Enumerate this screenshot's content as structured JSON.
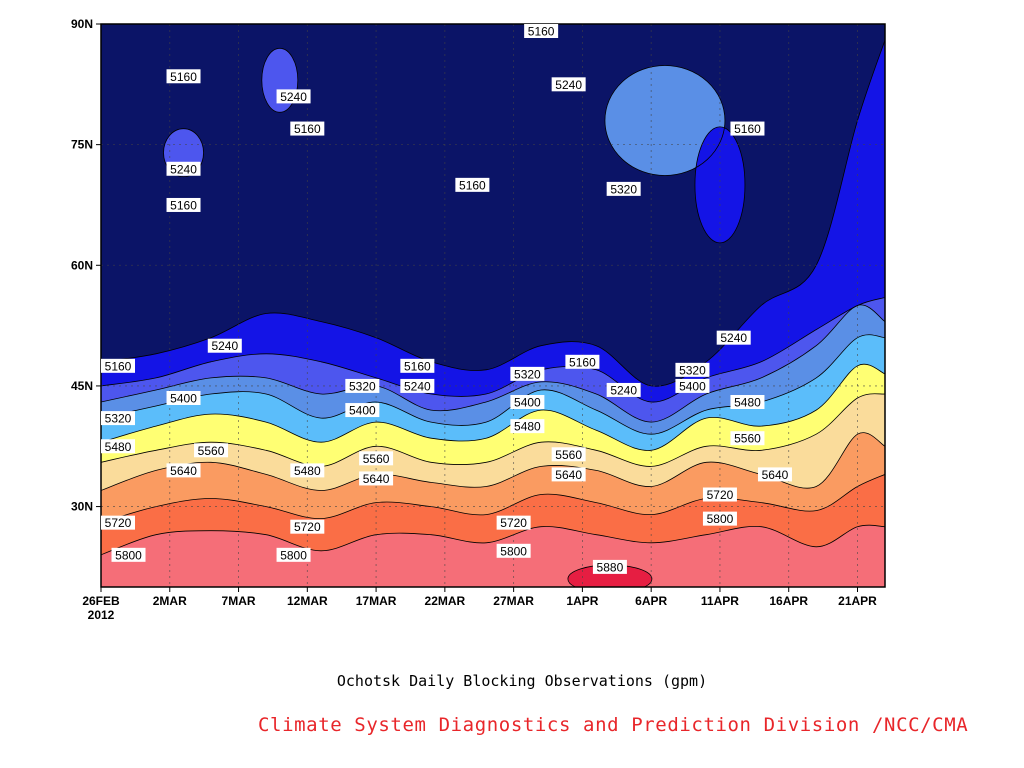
{
  "title": "Ochotsk Daily Blocking Observations (gpm)",
  "credit": "Climate System Diagnostics and Prediction Division /NCC/CMA",
  "colors": {
    "background": "#ffffff",
    "credit_text": "#e8262a",
    "levels": [
      "#0b1467",
      "#1414e6",
      "#4d56ee",
      "#5a8fe6",
      "#5bbdfa",
      "#ffff73",
      "#fadc9b",
      "#fa9b61",
      "#fa6e46",
      "#f56e78",
      "#e61e42"
    ]
  },
  "chart_data": {
    "type": "contour",
    "title": "Ochotsk Daily Blocking Observations (gpm)",
    "xlabel": "",
    "ylabel": "",
    "xlim": [
      "2012-02-26",
      "2012-04-23"
    ],
    "ylim": [
      20,
      90
    ],
    "grid": true,
    "x_ticks": [
      {
        "date": "2012-02-26",
        "label": "26FEB",
        "sublabel": "2012"
      },
      {
        "date": "2012-03-02",
        "label": "2MAR"
      },
      {
        "date": "2012-03-07",
        "label": "7MAR"
      },
      {
        "date": "2012-03-12",
        "label": "12MAR"
      },
      {
        "date": "2012-03-17",
        "label": "17MAR"
      },
      {
        "date": "2012-03-22",
        "label": "22MAR"
      },
      {
        "date": "2012-03-27",
        "label": "27MAR"
      },
      {
        "date": "2012-04-01",
        "label": "1APR"
      },
      {
        "date": "2012-04-06",
        "label": "6APR"
      },
      {
        "date": "2012-04-11",
        "label": "11APR"
      },
      {
        "date": "2012-04-16",
        "label": "16APR"
      },
      {
        "date": "2012-04-21",
        "label": "21APR"
      }
    ],
    "y_ticks": [
      {
        "value": 30,
        "label": "30N"
      },
      {
        "value": 45,
        "label": "45N"
      },
      {
        "value": 60,
        "label": "60N"
      },
      {
        "value": 75,
        "label": "75N"
      },
      {
        "value": 90,
        "label": "90N"
      }
    ],
    "levels": [
      5160,
      5240,
      5320,
      5400,
      5480,
      5560,
      5640,
      5720,
      5800,
      5880
    ],
    "boundary_dates": [
      "2012-02-26",
      "2012-03-01",
      "2012-03-05",
      "2012-03-09",
      "2012-03-13",
      "2012-03-17",
      "2012-03-21",
      "2012-03-25",
      "2012-03-29",
      "2012-04-02",
      "2012-04-06",
      "2012-04-10",
      "2012-04-14",
      "2012-04-18",
      "2012-04-21",
      "2012-04-23"
    ],
    "boundaries": [
      {
        "level": 5160,
        "lat": [
          48,
          49,
          51,
          54,
          53,
          51,
          48,
          47,
          50,
          50,
          45,
          48,
          55,
          60,
          78,
          88
        ]
      },
      {
        "level": 5240,
        "lat": [
          45,
          46,
          48,
          49,
          48,
          46,
          44,
          44,
          47,
          47,
          43,
          46,
          48,
          52,
          55,
          56
        ]
      },
      {
        "level": 5320,
        "lat": [
          43,
          44.5,
          46,
          46,
          44,
          45,
          42,
          43,
          45.5,
          44,
          40.5,
          44,
          46,
          50,
          55,
          53
        ]
      },
      {
        "level": 5400,
        "lat": [
          41,
          42.5,
          44,
          44,
          41,
          43,
          40.5,
          40.5,
          44.5,
          42,
          39,
          42,
          43,
          46,
          51,
          51
        ]
      },
      {
        "level": 5480,
        "lat": [
          38,
          40,
          41.5,
          40.5,
          38,
          40.5,
          38.5,
          38.5,
          42,
          39.5,
          37,
          41,
          40,
          42,
          47.5,
          46.5
        ]
      },
      {
        "level": 5560,
        "lat": [
          35.5,
          37,
          38,
          37,
          35,
          37.5,
          35.5,
          35.5,
          38,
          37,
          35,
          37.5,
          37,
          39,
          43.5,
          44
        ]
      },
      {
        "level": 5640,
        "lat": [
          32,
          34.5,
          35.5,
          34,
          32,
          34,
          33,
          32.5,
          35,
          34.5,
          32.5,
          35.5,
          34,
          32.5,
          39,
          37.5
        ]
      },
      {
        "level": 5720,
        "lat": [
          28,
          30,
          31,
          30,
          28.5,
          30.5,
          30,
          29,
          31.5,
          30.5,
          29,
          31,
          30.5,
          29.5,
          32.5,
          34
        ]
      },
      {
        "level": 5800,
        "lat": [
          24,
          26.5,
          27,
          26.5,
          24.5,
          26.5,
          26.5,
          25.5,
          27.5,
          26.5,
          25.5,
          26.5,
          27.5,
          25,
          27.5,
          27.5
        ]
      }
    ],
    "regions": [
      {
        "level": 5240,
        "center": {
          "date": "2012-03-03",
          "lat": 74
        }
      },
      {
        "level": 5240,
        "center": {
          "date": "2012-03-10",
          "lat": 83
        }
      },
      {
        "level": 5320,
        "center": {
          "date": "2012-04-07",
          "lat": 78
        }
      },
      {
        "level": 5160,
        "center": {
          "date": "2012-04-11",
          "lat": 70
        }
      },
      {
        "level": 5880,
        "center": {
          "date": "2012-04-03",
          "lat": 21
        }
      }
    ],
    "contour_labels": [
      {
        "text": "5160",
        "date": "2012-02-26",
        "lat": 47.5
      },
      {
        "text": "5320",
        "date": "2012-02-26",
        "lat": 41
      },
      {
        "text": "5480",
        "date": "2012-02-26",
        "lat": 37.5
      },
      {
        "text": "5720",
        "date": "2012-02-26",
        "lat": 28
      },
      {
        "text": "5800",
        "date": "2012-02-28",
        "lat": 24
      },
      {
        "text": "5160",
        "date": "2012-03-03",
        "lat": 83.5
      },
      {
        "text": "5240",
        "date": "2012-03-03",
        "lat": 72
      },
      {
        "text": "5160",
        "date": "2012-03-03",
        "lat": 67.5
      },
      {
        "text": "5240",
        "date": "2012-03-06",
        "lat": 50
      },
      {
        "text": "5400",
        "date": "2012-03-03",
        "lat": 43.5
      },
      {
        "text": "5560",
        "date": "2012-03-05",
        "lat": 37
      },
      {
        "text": "5640",
        "date": "2012-03-03",
        "lat": 34.5
      },
      {
        "text": "5240",
        "date": "2012-03-11",
        "lat": 81
      },
      {
        "text": "5160",
        "date": "2012-03-12",
        "lat": 77
      },
      {
        "text": "5480",
        "date": "2012-03-12",
        "lat": 34.5
      },
      {
        "text": "5720",
        "date": "2012-03-12",
        "lat": 27.5
      },
      {
        "text": "5800",
        "date": "2012-03-11",
        "lat": 24
      },
      {
        "text": "5320",
        "date": "2012-03-16",
        "lat": 45
      },
      {
        "text": "5400",
        "date": "2012-03-16",
        "lat": 42
      },
      {
        "text": "5560",
        "date": "2012-03-17",
        "lat": 36
      },
      {
        "text": "5640",
        "date": "2012-03-17",
        "lat": 33.5
      },
      {
        "text": "5160",
        "date": "2012-03-20",
        "lat": 47.5
      },
      {
        "text": "5240",
        "date": "2012-03-20",
        "lat": 45
      },
      {
        "text": "5160",
        "date": "2012-03-24",
        "lat": 70
      },
      {
        "text": "5320",
        "date": "2012-03-28",
        "lat": 46.5
      },
      {
        "text": "5400",
        "date": "2012-03-28",
        "lat": 43
      },
      {
        "text": "5480",
        "date": "2012-03-28",
        "lat": 40
      },
      {
        "text": "5720",
        "date": "2012-03-27",
        "lat": 28
      },
      {
        "text": "5800",
        "date": "2012-03-27",
        "lat": 24.5
      },
      {
        "text": "5160",
        "date": "2012-03-29",
        "lat": 89.5
      },
      {
        "text": "5240",
        "date": "2012-03-31",
        "lat": 82.5
      },
      {
        "text": "5560",
        "date": "2012-03-31",
        "lat": 36.5
      },
      {
        "text": "5640",
        "date": "2012-03-31",
        "lat": 34
      },
      {
        "text": "5160",
        "date": "2012-04-01",
        "lat": 48
      },
      {
        "text": "5240",
        "date": "2012-04-04",
        "lat": 44.5
      },
      {
        "text": "5880",
        "date": "2012-04-03",
        "lat": 22.5
      },
      {
        "text": "5320",
        "date": "2012-04-04",
        "lat": 69.5
      },
      {
        "text": "5320",
        "date": "2012-04-09",
        "lat": 47
      },
      {
        "text": "5400",
        "date": "2012-04-09",
        "lat": 45
      },
      {
        "text": "5720",
        "date": "2012-04-11",
        "lat": 31.5
      },
      {
        "text": "5800",
        "date": "2012-04-11",
        "lat": 28.5
      },
      {
        "text": "5160",
        "date": "2012-04-13",
        "lat": 77
      },
      {
        "text": "5240",
        "date": "2012-04-12",
        "lat": 51
      },
      {
        "text": "5480",
        "date": "2012-04-13",
        "lat": 43
      },
      {
        "text": "5560",
        "date": "2012-04-13",
        "lat": 38.5
      },
      {
        "text": "5640",
        "date": "2012-04-15",
        "lat": 34
      }
    ]
  }
}
